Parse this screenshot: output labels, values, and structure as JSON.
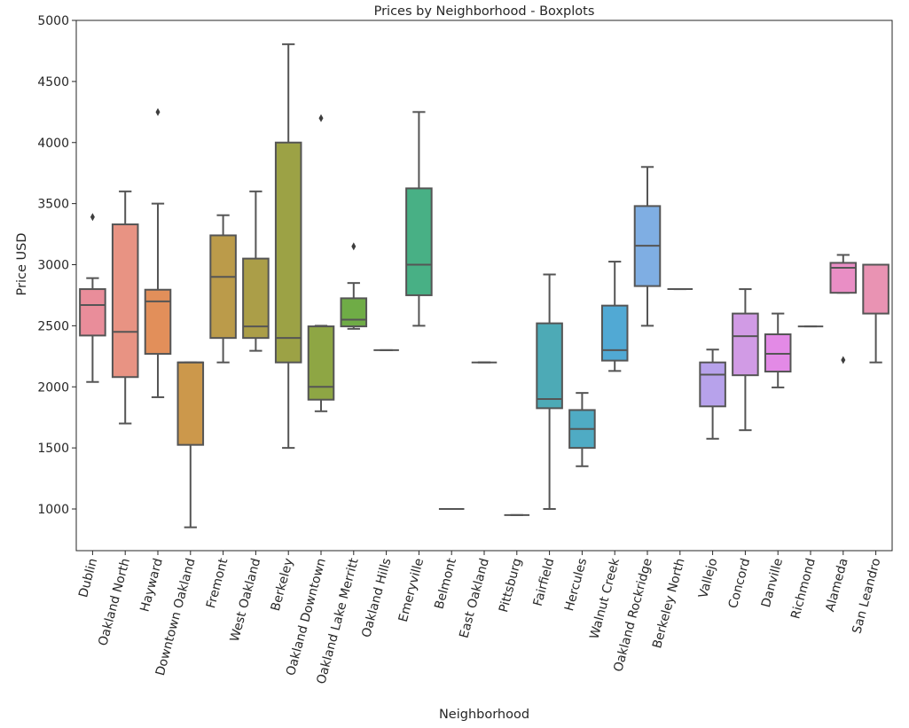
{
  "chart_data": {
    "type": "boxplot",
    "title": "Prices by Neighborhood - Boxplots",
    "xlabel": "Neighborhood",
    "ylabel": "Price USD",
    "ylim": [
      650,
      5000
    ],
    "yticks": [
      1000,
      1500,
      2000,
      2500,
      3000,
      3500,
      4000,
      4500,
      5000
    ],
    "grid": false,
    "legend": "none",
    "categories": [
      "Dublin",
      "Oakland North",
      "Hayward",
      "Downtown Oakland",
      "Fremont",
      "West Oakland",
      "Berkeley",
      "Oakland Downtown",
      "Oakland Lake Merritt",
      "Oakland Hills",
      "Emeryville",
      "Belmont",
      "East Oakland",
      "Pittsburg",
      "Fairfield",
      "Hercules",
      "Walnut Creek",
      "Oakland Rockridge",
      "Berkeley North",
      "Vallejo",
      "Concord",
      "Danville",
      "Richmond",
      "Alameda",
      "San Leandro"
    ],
    "series": [
      {
        "name": "Dublin",
        "color": "#e98d9a",
        "whisker_low": 2040,
        "q1": 2420,
        "median": 2670,
        "q3": 2800,
        "whisker_high": 2890,
        "outliers": [
          3390
        ]
      },
      {
        "name": "Oakland North",
        "color": "#e89383",
        "whisker_low": 1700,
        "q1": 2080,
        "median": 2450,
        "q3": 3330,
        "whisker_high": 3600,
        "outliers": []
      },
      {
        "name": "Hayward",
        "color": "#e28f5a",
        "whisker_low": 1915,
        "q1": 2270,
        "median": 2700,
        "q3": 2795,
        "whisker_high": 3500,
        "outliers": [
          4250
        ]
      },
      {
        "name": "Downtown Oakland",
        "color": "#cc984b",
        "whisker_low": 850,
        "q1": 1525,
        "median": 2200,
        "q3": 2200,
        "whisker_high": 2200,
        "outliers": []
      },
      {
        "name": "Fremont",
        "color": "#bb9b4a",
        "whisker_low": 2200,
        "q1": 2400,
        "median": 2900,
        "q3": 3240,
        "whisker_high": 3405,
        "outliers": []
      },
      {
        "name": "West Oakland",
        "color": "#ab9e48",
        "whisker_low": 2295,
        "q1": 2400,
        "median": 2495,
        "q3": 3050,
        "whisker_high": 3600,
        "outliers": []
      },
      {
        "name": "Berkeley",
        "color": "#9ca245",
        "whisker_low": 1500,
        "q1": 2200,
        "median": 2400,
        "q3": 4000,
        "whisker_high": 4805,
        "outliers": []
      },
      {
        "name": "Oakland Downtown",
        "color": "#8ea644",
        "whisker_low": 1800,
        "q1": 1895,
        "median": 2000,
        "q3": 2495,
        "whisker_high": 2500,
        "outliers": [
          4200
        ]
      },
      {
        "name": "Oakland Lake Merritt",
        "color": "#6fac46",
        "whisker_low": 2475,
        "q1": 2495,
        "median": 2550,
        "q3": 2725,
        "whisker_high": 2850,
        "outliers": [
          3150
        ]
      },
      {
        "name": "Oakland Hills",
        "color": "#55ae5f",
        "whisker_low": 2300,
        "q1": 2300,
        "median": 2300,
        "q3": 2300,
        "whisker_high": 2300,
        "outliers": []
      },
      {
        "name": "Emeryville",
        "color": "#48b085",
        "whisker_low": 2500,
        "q1": 2750,
        "median": 3000,
        "q3": 3625,
        "whisker_high": 4250,
        "outliers": []
      },
      {
        "name": "Belmont",
        "color": "#49af98",
        "whisker_low": 1000,
        "q1": 1000,
        "median": 1000,
        "q3": 1000,
        "whisker_high": 1000,
        "outliers": []
      },
      {
        "name": "East Oakland",
        "color": "#4aaea6",
        "whisker_low": 2200,
        "q1": 2200,
        "median": 2200,
        "q3": 2200,
        "whisker_high": 2200,
        "outliers": []
      },
      {
        "name": "Pittsburg",
        "color": "#4babb2",
        "whisker_low": 950,
        "q1": 950,
        "median": 950,
        "q3": 950,
        "whisker_high": 950,
        "outliers": []
      },
      {
        "name": "Fairfield",
        "color": "#4daab6",
        "whisker_low": 1000,
        "q1": 1825,
        "median": 1900,
        "q3": 2520,
        "whisker_high": 2920,
        "outliers": []
      },
      {
        "name": "Hercules",
        "color": "#4fabc4",
        "whisker_low": 1350,
        "q1": 1500,
        "median": 1655,
        "q3": 1810,
        "whisker_high": 1950,
        "outliers": []
      },
      {
        "name": "Walnut Creek",
        "color": "#51a9d4",
        "whisker_low": 2130,
        "q1": 2215,
        "median": 2300,
        "q3": 2665,
        "whisker_high": 3025,
        "outliers": []
      },
      {
        "name": "Oakland Rockridge",
        "color": "#7faee3",
        "whisker_low": 2500,
        "q1": 2825,
        "median": 3155,
        "q3": 3480,
        "whisker_high": 3800,
        "outliers": []
      },
      {
        "name": "Berkeley North",
        "color": "#9aa8ea",
        "whisker_low": 2800,
        "q1": 2800,
        "median": 2800,
        "q3": 2800,
        "whisker_high": 2800,
        "outliers": []
      },
      {
        "name": "Vallejo",
        "color": "#b7a2eb",
        "whisker_low": 1575,
        "q1": 1840,
        "median": 2100,
        "q3": 2200,
        "whisker_high": 2305,
        "outliers": []
      },
      {
        "name": "Concord",
        "color": "#d19be5",
        "whisker_low": 1645,
        "q1": 2095,
        "median": 2415,
        "q3": 2600,
        "whisker_high": 2800,
        "outliers": []
      },
      {
        "name": "Danville",
        "color": "#e38ae6",
        "whisker_low": 1995,
        "q1": 2125,
        "median": 2270,
        "q3": 2430,
        "whisker_high": 2600,
        "outliers": []
      },
      {
        "name": "Richmond",
        "color": "#e98bd1",
        "whisker_low": 2495,
        "q1": 2495,
        "median": 2495,
        "q3": 2495,
        "whisker_high": 2495,
        "outliers": []
      },
      {
        "name": "Alameda",
        "color": "#e98ec5",
        "whisker_low": 2770,
        "q1": 2770,
        "median": 2975,
        "q3": 3015,
        "whisker_high": 3080,
        "outliers": [
          2220
        ]
      },
      {
        "name": "San Leandro",
        "color": "#e993b3",
        "whisker_low": 2200,
        "q1": 2600,
        "median": 3000,
        "q3": 3000,
        "whisker_high": 3000,
        "outliers": []
      }
    ]
  }
}
